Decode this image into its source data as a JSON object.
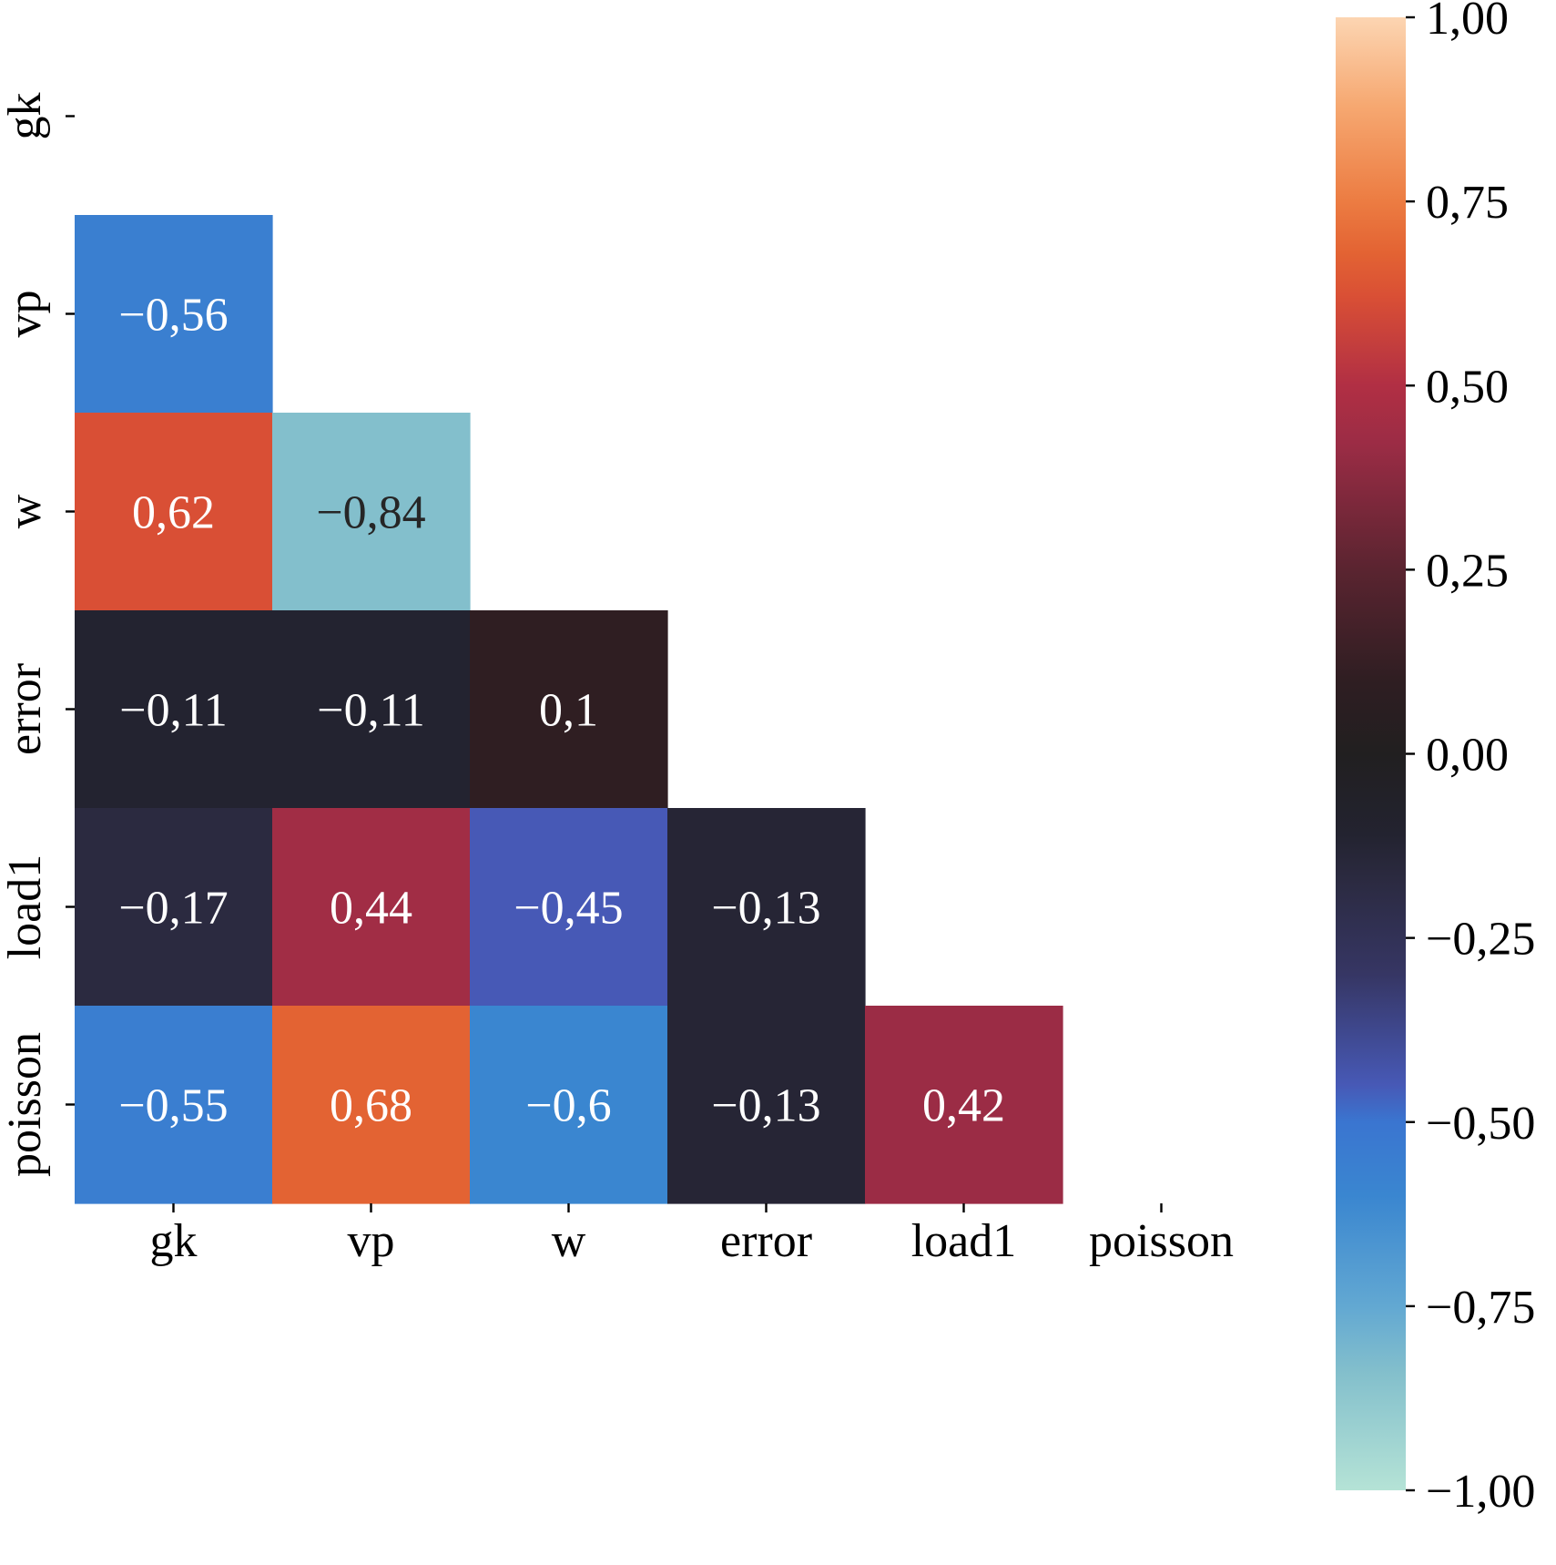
{
  "chart_data": {
    "type": "heatmap",
    "variables": [
      "gk",
      "vp",
      "w",
      "error",
      "load1",
      "poisson"
    ],
    "mask": "upper-triangle-and-diagonal",
    "cells": [
      {
        "row": "vp",
        "col": "gk",
        "value": -0.56,
        "label": "−0,56"
      },
      {
        "row": "w",
        "col": "gk",
        "value": 0.62,
        "label": "0,62"
      },
      {
        "row": "w",
        "col": "vp",
        "value": -0.84,
        "label": "−0,84"
      },
      {
        "row": "error",
        "col": "gk",
        "value": -0.11,
        "label": "−0,11"
      },
      {
        "row": "error",
        "col": "vp",
        "value": -0.11,
        "label": "−0,11"
      },
      {
        "row": "error",
        "col": "w",
        "value": 0.1,
        "label": "0,1"
      },
      {
        "row": "load1",
        "col": "gk",
        "value": -0.17,
        "label": "−0,17"
      },
      {
        "row": "load1",
        "col": "vp",
        "value": 0.44,
        "label": "0,44"
      },
      {
        "row": "load1",
        "col": "w",
        "value": -0.45,
        "label": "−0,45"
      },
      {
        "row": "load1",
        "col": "error",
        "value": -0.13,
        "label": "−0,13"
      },
      {
        "row": "poisson",
        "col": "gk",
        "value": -0.55,
        "label": "−0,55"
      },
      {
        "row": "poisson",
        "col": "vp",
        "value": 0.68,
        "label": "0,68"
      },
      {
        "row": "poisson",
        "col": "w",
        "value": -0.6,
        "label": "−0,6"
      },
      {
        "row": "poisson",
        "col": "error",
        "value": -0.13,
        "label": "−0,13"
      },
      {
        "row": "poisson",
        "col": "load1",
        "value": 0.42,
        "label": "0,42"
      }
    ],
    "colorbar": {
      "range": [
        -1,
        1
      ],
      "ticks": [
        1,
        0.75,
        0.5,
        0.25,
        0,
        -0.25,
        -0.5,
        -0.75,
        -1
      ],
      "tick_labels": [
        "1,00",
        "0,75",
        "0,50",
        "0,25",
        "0,00",
        "−0,25",
        "−0,50",
        "−0,75",
        "−1,00"
      ]
    },
    "colormap": [
      {
        "v": -1.0,
        "color": "#b5e3d6"
      },
      {
        "v": -0.84,
        "color": "#83bfcc"
      },
      {
        "v": -0.75,
        "color": "#62a8d2"
      },
      {
        "v": -0.6,
        "color": "#3a86d0"
      },
      {
        "v": -0.5,
        "color": "#3a75d0"
      },
      {
        "v": -0.45,
        "color": "#4759b6"
      },
      {
        "v": -0.3,
        "color": "#363664"
      },
      {
        "v": -0.17,
        "color": "#2b2a40"
      },
      {
        "v": -0.11,
        "color": "#232330"
      },
      {
        "v": 0.0,
        "color": "#211f20"
      },
      {
        "v": 0.1,
        "color": "#2f1e22"
      },
      {
        "v": 0.25,
        "color": "#5a2430"
      },
      {
        "v": 0.42,
        "color": "#9b2c45"
      },
      {
        "v": 0.5,
        "color": "#b12f44"
      },
      {
        "v": 0.62,
        "color": "#d94f35"
      },
      {
        "v": 0.68,
        "color": "#e36333"
      },
      {
        "v": 0.75,
        "color": "#ec7c42"
      },
      {
        "v": 0.88,
        "color": "#f6a871"
      },
      {
        "v": 1.0,
        "color": "#fcd5b2"
      }
    ],
    "xlabel": "",
    "ylabel": "",
    "title": ""
  }
}
